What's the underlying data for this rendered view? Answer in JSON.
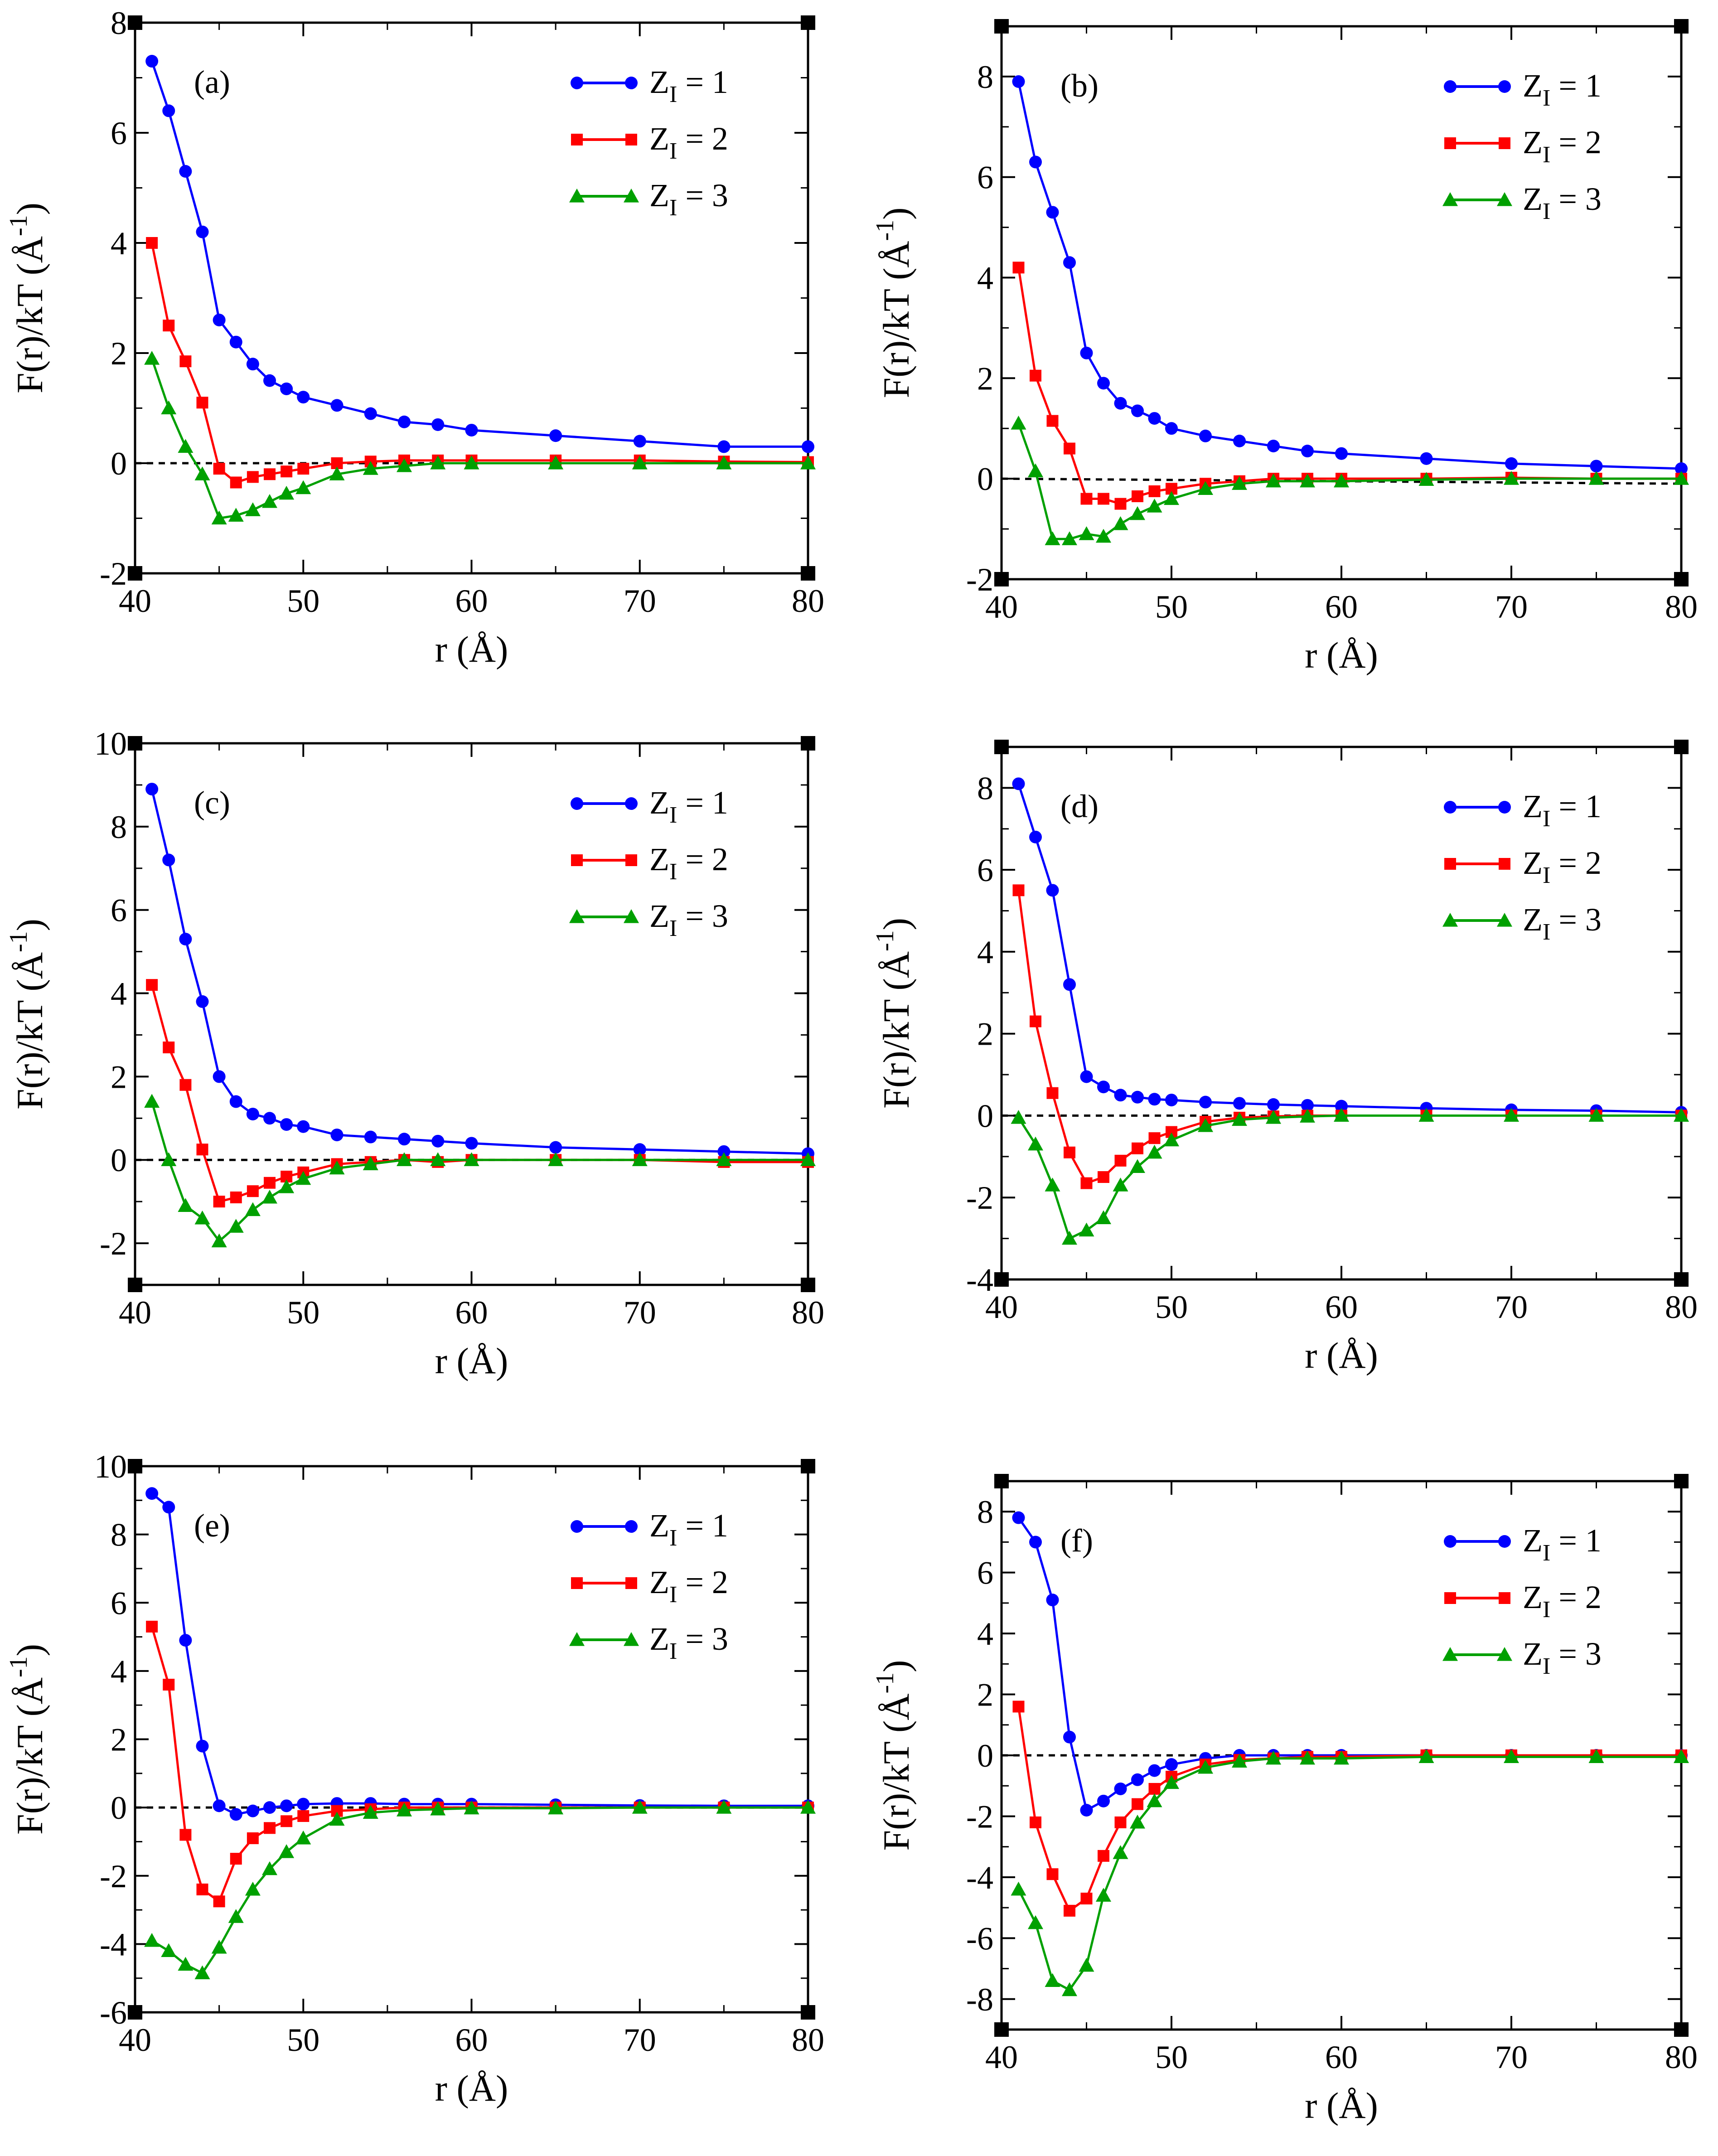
{
  "chart_data": [
    {
      "type": "line",
      "panel_label": "(a)",
      "xlabel": "r (Å)",
      "ylabel": "F(r)/kT (Å",
      "ylabel_exponent": "-1",
      "xlim": [
        40,
        80
      ],
      "ylim": [
        -2,
        8
      ],
      "xticks": [
        40,
        50,
        60,
        70,
        80
      ],
      "yticks": [
        -2,
        0,
        2,
        4,
        6,
        8
      ],
      "legend_position": "top-right",
      "series": [
        {
          "name": "Z_I = 1",
          "color": "#0000ff",
          "marker": "circle",
          "x": [
            41,
            42,
            43,
            44,
            45,
            46,
            47,
            48,
            49,
            50,
            52,
            54,
            56,
            58,
            60,
            65,
            70,
            75,
            80
          ],
          "y": [
            7.3,
            6.4,
            5.3,
            4.2,
            2.6,
            2.2,
            1.8,
            1.5,
            1.35,
            1.2,
            1.05,
            0.9,
            0.75,
            0.7,
            0.6,
            0.5,
            0.4,
            0.3,
            0.3
          ]
        },
        {
          "name": "Z_I = 2",
          "color": "#ff0000",
          "marker": "square",
          "x": [
            41,
            42,
            43,
            44,
            45,
            46,
            47,
            48,
            49,
            50,
            52,
            54,
            56,
            58,
            60,
            65,
            70,
            75,
            80
          ],
          "y": [
            4.0,
            2.5,
            1.85,
            1.1,
            -0.1,
            -0.35,
            -0.25,
            -0.2,
            -0.15,
            -0.1,
            0.0,
            0.03,
            0.05,
            0.05,
            0.05,
            0.05,
            0.05,
            0.03,
            0.02
          ]
        },
        {
          "name": "Z_I = 3",
          "color": "#00a000",
          "marker": "triangle",
          "x": [
            41,
            42,
            43,
            44,
            45,
            46,
            47,
            48,
            49,
            50,
            52,
            54,
            56,
            58,
            60,
            65,
            70,
            75,
            80
          ],
          "y": [
            1.9,
            1.0,
            0.3,
            -0.2,
            -1.0,
            -0.95,
            -0.85,
            -0.7,
            -0.55,
            -0.45,
            -0.2,
            -0.1,
            -0.05,
            0.0,
            0.0,
            0.0,
            0.0,
            0.0,
            0.0
          ]
        }
      ],
      "reference_line": {
        "y": [
          0,
          0
        ],
        "style": "dashed"
      }
    },
    {
      "type": "line",
      "panel_label": "(b)",
      "xlabel": "r (Å)",
      "ylabel": "F(r)/kT (Å",
      "ylabel_exponent": "-1",
      "xlim": [
        40,
        80
      ],
      "ylim": [
        -2,
        9
      ],
      "xticks": [
        40,
        50,
        60,
        70,
        80
      ],
      "yticks": [
        -2,
        0,
        2,
        4,
        6,
        8
      ],
      "legend_position": "top-right",
      "series": [
        {
          "name": "Z_I = 1",
          "color": "#0000ff",
          "marker": "circle",
          "x": [
            41,
            42,
            43,
            44,
            45,
            46,
            47,
            48,
            49,
            50,
            52,
            54,
            56,
            58,
            60,
            65,
            70,
            75,
            80
          ],
          "y": [
            7.9,
            6.3,
            5.3,
            4.3,
            2.5,
            1.9,
            1.5,
            1.35,
            1.2,
            1.0,
            0.85,
            0.75,
            0.65,
            0.55,
            0.5,
            0.4,
            0.3,
            0.25,
            0.2
          ]
        },
        {
          "name": "Z_I = 2",
          "color": "#ff0000",
          "marker": "square",
          "x": [
            41,
            42,
            43,
            44,
            45,
            46,
            47,
            48,
            49,
            50,
            52,
            54,
            56,
            58,
            60,
            65,
            70,
            75,
            80
          ],
          "y": [
            4.2,
            2.05,
            1.15,
            0.6,
            -0.4,
            -0.4,
            -0.5,
            -0.35,
            -0.25,
            -0.2,
            -0.1,
            -0.05,
            0.0,
            0.0,
            0.0,
            0.0,
            0.02,
            0.0,
            0.0
          ]
        },
        {
          "name": "Z_I = 3",
          "color": "#00a000",
          "marker": "triangle",
          "x": [
            41,
            42,
            43,
            44,
            45,
            46,
            47,
            48,
            49,
            50,
            52,
            54,
            56,
            58,
            60,
            65,
            70,
            75,
            80
          ],
          "y": [
            1.1,
            0.15,
            -1.2,
            -1.2,
            -1.1,
            -1.15,
            -0.9,
            -0.7,
            -0.55,
            -0.4,
            -0.2,
            -0.1,
            -0.05,
            -0.05,
            -0.05,
            -0.02,
            0.0,
            0.0,
            0.0
          ]
        }
      ],
      "reference_line": {
        "y": [
          0,
          -0.1
        ],
        "style": "dashed"
      }
    },
    {
      "type": "line",
      "panel_label": "(c)",
      "xlabel": "r (Å)",
      "ylabel": "F(r)/kT (Å",
      "ylabel_exponent": "-1",
      "xlim": [
        40,
        80
      ],
      "ylim": [
        -3,
        10
      ],
      "xticks": [
        40,
        50,
        60,
        70,
        80
      ],
      "yticks": [
        -2,
        0,
        2,
        4,
        6,
        8,
        10
      ],
      "legend_position": "top-right",
      "series": [
        {
          "name": "Z_I = 1",
          "color": "#0000ff",
          "marker": "circle",
          "x": [
            41,
            42,
            43,
            44,
            45,
            46,
            47,
            48,
            49,
            50,
            52,
            54,
            56,
            58,
            60,
            65,
            70,
            75,
            80
          ],
          "y": [
            8.9,
            7.2,
            5.3,
            3.8,
            2.0,
            1.4,
            1.1,
            1.0,
            0.85,
            0.8,
            0.6,
            0.55,
            0.5,
            0.45,
            0.4,
            0.3,
            0.25,
            0.2,
            0.15
          ]
        },
        {
          "name": "Z_I = 2",
          "color": "#ff0000",
          "marker": "square",
          "x": [
            41,
            42,
            43,
            44,
            45,
            46,
            47,
            48,
            49,
            50,
            52,
            54,
            56,
            58,
            60,
            65,
            70,
            75,
            80
          ],
          "y": [
            4.2,
            2.7,
            1.8,
            0.25,
            -1.0,
            -0.9,
            -0.75,
            -0.55,
            -0.4,
            -0.3,
            -0.1,
            -0.05,
            0.0,
            -0.05,
            0.0,
            0.0,
            0.0,
            -0.05,
            -0.05
          ]
        },
        {
          "name": "Z_I = 3",
          "color": "#00a000",
          "marker": "triangle",
          "x": [
            41,
            42,
            43,
            44,
            45,
            46,
            47,
            48,
            49,
            50,
            52,
            54,
            56,
            58,
            60,
            65,
            70,
            75,
            80
          ],
          "y": [
            1.4,
            0.0,
            -1.1,
            -1.4,
            -1.95,
            -1.6,
            -1.2,
            -0.9,
            -0.65,
            -0.45,
            -0.2,
            -0.1,
            0.0,
            0.0,
            0.0,
            0.0,
            0.0,
            0.0,
            0.0
          ]
        }
      ],
      "reference_line": {
        "y": [
          0,
          0
        ],
        "style": "dashed"
      }
    },
    {
      "type": "line",
      "panel_label": "(d)",
      "xlabel": "r (Å)",
      "ylabel": "F(r)/kT (Å",
      "ylabel_exponent": "-1",
      "xlim": [
        40,
        80
      ],
      "ylim": [
        -4,
        9
      ],
      "xticks": [
        40,
        50,
        60,
        70,
        80
      ],
      "yticks": [
        -4,
        -2,
        0,
        2,
        4,
        6,
        8
      ],
      "legend_position": "top-right",
      "series": [
        {
          "name": "Z_I = 1",
          "color": "#0000ff",
          "marker": "circle",
          "x": [
            41,
            42,
            43,
            44,
            45,
            46,
            47,
            48,
            49,
            50,
            52,
            54,
            56,
            58,
            60,
            65,
            70,
            75,
            80
          ],
          "y": [
            8.1,
            6.8,
            5.5,
            3.2,
            0.95,
            0.7,
            0.5,
            0.45,
            0.4,
            0.38,
            0.33,
            0.3,
            0.27,
            0.25,
            0.23,
            0.18,
            0.14,
            0.12,
            0.08
          ]
        },
        {
          "name": "Z_I = 2",
          "color": "#ff0000",
          "marker": "square",
          "x": [
            41,
            42,
            43,
            44,
            45,
            46,
            47,
            48,
            49,
            50,
            52,
            54,
            56,
            58,
            60,
            65,
            70,
            75,
            80
          ],
          "y": [
            5.5,
            2.3,
            0.55,
            -0.9,
            -1.65,
            -1.5,
            -1.1,
            -0.8,
            -0.55,
            -0.4,
            -0.15,
            -0.05,
            -0.02,
            0.0,
            0.0,
            0.0,
            0.0,
            0.0,
            0.0
          ]
        },
        {
          "name": "Z_I = 3",
          "color": "#00a000",
          "marker": "triangle",
          "x": [
            41,
            42,
            43,
            44,
            45,
            46,
            47,
            48,
            49,
            50,
            52,
            54,
            56,
            58,
            60,
            65,
            70,
            75,
            80
          ],
          "y": [
            -0.05,
            -0.7,
            -1.7,
            -3.0,
            -2.8,
            -2.5,
            -1.7,
            -1.25,
            -0.9,
            -0.6,
            -0.25,
            -0.1,
            -0.05,
            -0.02,
            0.0,
            0.0,
            0.0,
            0.0,
            0.0
          ]
        }
      ],
      "reference_line": {
        "y": [
          0,
          0
        ],
        "style": "dashed"
      }
    },
    {
      "type": "line",
      "panel_label": "(e)",
      "xlabel": "r (Å)",
      "ylabel": "F(r)/kT (Å",
      "ylabel_exponent": "-1",
      "xlim": [
        40,
        80
      ],
      "ylim": [
        -6,
        10
      ],
      "xticks": [
        40,
        50,
        60,
        70,
        80
      ],
      "yticks": [
        -6,
        -4,
        -2,
        0,
        2,
        4,
        6,
        8,
        10
      ],
      "legend_position": "top-right",
      "series": [
        {
          "name": "Z_I = 1",
          "color": "#0000ff",
          "marker": "circle",
          "x": [
            41,
            42,
            43,
            44,
            45,
            46,
            47,
            48,
            49,
            50,
            52,
            54,
            56,
            58,
            60,
            65,
            70,
            75,
            80
          ],
          "y": [
            9.2,
            8.8,
            4.9,
            1.8,
            0.05,
            -0.2,
            -0.1,
            0.0,
            0.05,
            0.1,
            0.12,
            0.12,
            0.1,
            0.1,
            0.1,
            0.08,
            0.06,
            0.05,
            0.05
          ]
        },
        {
          "name": "Z_I = 2",
          "color": "#ff0000",
          "marker": "square",
          "x": [
            41,
            42,
            43,
            44,
            45,
            46,
            47,
            48,
            49,
            50,
            52,
            54,
            56,
            58,
            60,
            65,
            70,
            75,
            80
          ],
          "y": [
            5.3,
            3.6,
            -0.8,
            -2.4,
            -2.75,
            -1.5,
            -0.9,
            -0.6,
            -0.4,
            -0.25,
            -0.1,
            -0.05,
            0.0,
            0.0,
            0.0,
            0.0,
            0.0,
            0.0,
            0.0
          ]
        },
        {
          "name": "Z_I = 3",
          "color": "#00a000",
          "marker": "triangle",
          "x": [
            41,
            42,
            43,
            44,
            45,
            46,
            47,
            48,
            49,
            50,
            52,
            54,
            56,
            58,
            60,
            65,
            70,
            75,
            80
          ],
          "y": [
            -3.9,
            -4.2,
            -4.6,
            -4.85,
            -4.1,
            -3.2,
            -2.4,
            -1.8,
            -1.3,
            -0.9,
            -0.35,
            -0.15,
            -0.08,
            -0.05,
            -0.02,
            -0.02,
            0.0,
            0.0,
            0.0
          ]
        }
      ],
      "reference_line": {
        "y": [
          0,
          0
        ],
        "style": "dashed"
      }
    },
    {
      "type": "line",
      "panel_label": "(f)",
      "xlabel": "r (Å)",
      "ylabel": "F(r)/kT (Å",
      "ylabel_exponent": "-1",
      "xlim": [
        40,
        80
      ],
      "ylim": [
        -9,
        9
      ],
      "xticks": [
        40,
        50,
        60,
        70,
        80
      ],
      "yticks": [
        -8,
        -6,
        -4,
        -2,
        0,
        2,
        4,
        6,
        8
      ],
      "legend_position": "top-right",
      "series": [
        {
          "name": "Z_I = 1",
          "color": "#0000ff",
          "marker": "circle",
          "x": [
            41,
            42,
            43,
            44,
            45,
            46,
            47,
            48,
            49,
            50,
            52,
            54,
            56,
            58,
            60,
            65,
            70,
            75,
            80
          ],
          "y": [
            7.8,
            7.0,
            5.1,
            0.6,
            -1.8,
            -1.5,
            -1.1,
            -0.8,
            -0.5,
            -0.3,
            -0.1,
            0.0,
            0.0,
            0.0,
            0.0,
            0.0,
            0.0,
            0.0,
            0.0
          ]
        },
        {
          "name": "Z_I = 2",
          "color": "#ff0000",
          "marker": "square",
          "x": [
            41,
            42,
            43,
            44,
            45,
            46,
            47,
            48,
            49,
            50,
            52,
            54,
            56,
            58,
            60,
            65,
            70,
            75,
            80
          ],
          "y": [
            1.6,
            -2.2,
            -3.9,
            -5.1,
            -4.7,
            -3.3,
            -2.2,
            -1.6,
            -1.1,
            -0.7,
            -0.3,
            -0.15,
            -0.1,
            -0.05,
            -0.05,
            0.0,
            0.0,
            0.0,
            0.0
          ]
        },
        {
          "name": "Z_I = 3",
          "color": "#00a000",
          "marker": "triangle",
          "x": [
            41,
            42,
            43,
            44,
            45,
            46,
            47,
            48,
            49,
            50,
            52,
            54,
            56,
            58,
            60,
            65,
            70,
            75,
            80
          ],
          "y": [
            -4.4,
            -5.5,
            -7.4,
            -7.7,
            -6.9,
            -4.6,
            -3.2,
            -2.2,
            -1.5,
            -0.9,
            -0.4,
            -0.2,
            -0.1,
            -0.1,
            -0.1,
            -0.05,
            -0.05,
            -0.05,
            -0.05
          ]
        }
      ],
      "reference_line": {
        "y": [
          0,
          0
        ],
        "style": "dashed"
      }
    }
  ]
}
